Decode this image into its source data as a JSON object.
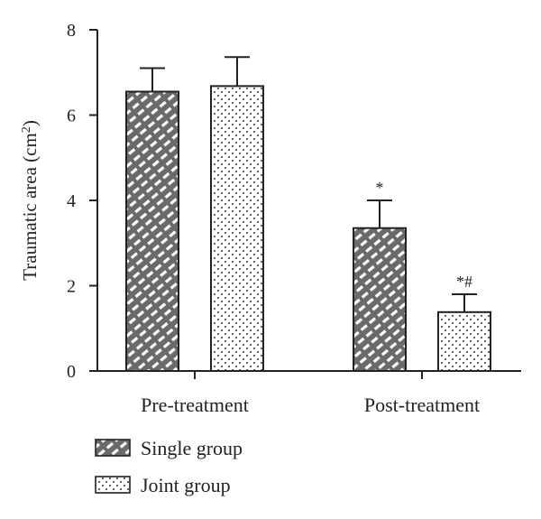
{
  "chart_data": {
    "type": "bar",
    "categories": [
      "Pre-treatment",
      "Post-treatment"
    ],
    "series": [
      {
        "name": "Single group",
        "values": [
          6.55,
          3.35
        ],
        "errors": [
          0.55,
          0.65
        ],
        "annotations": [
          "",
          "*"
        ],
        "pattern": "hatch"
      },
      {
        "name": "Joint group",
        "values": [
          6.68,
          1.38
        ],
        "errors": [
          0.68,
          0.42
        ],
        "annotations": [
          "",
          "*#"
        ],
        "pattern": "dots"
      }
    ],
    "title": "",
    "xlabel": "",
    "ylabel": "Traumatic area (cm",
    "ylabel_superscript": "2",
    "ylabel_close": ")",
    "ylim": [
      0,
      8
    ],
    "yticks": [
      0,
      2,
      4,
      6,
      8
    ],
    "grid": false,
    "legend": "bottom-left",
    "colors": {
      "bar_fill": "#6e6e6e",
      "bar_stroke": "#222222",
      "background": "#ffffff"
    }
  }
}
